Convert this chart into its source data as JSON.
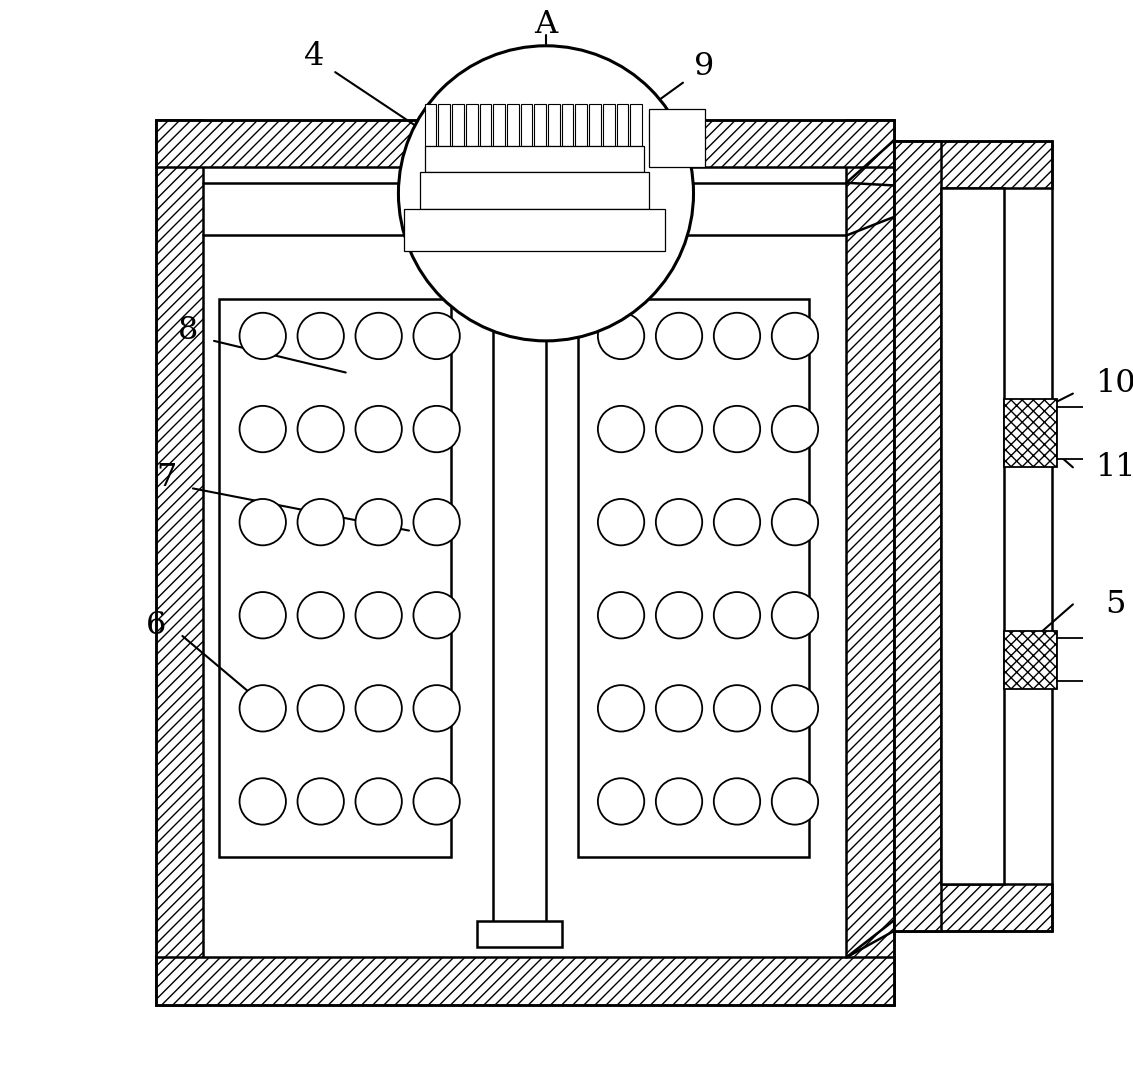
{
  "bg_color": "#ffffff",
  "line_color": "#000000",
  "figsize": [
    11.33,
    10.75
  ],
  "dpi": 100
}
